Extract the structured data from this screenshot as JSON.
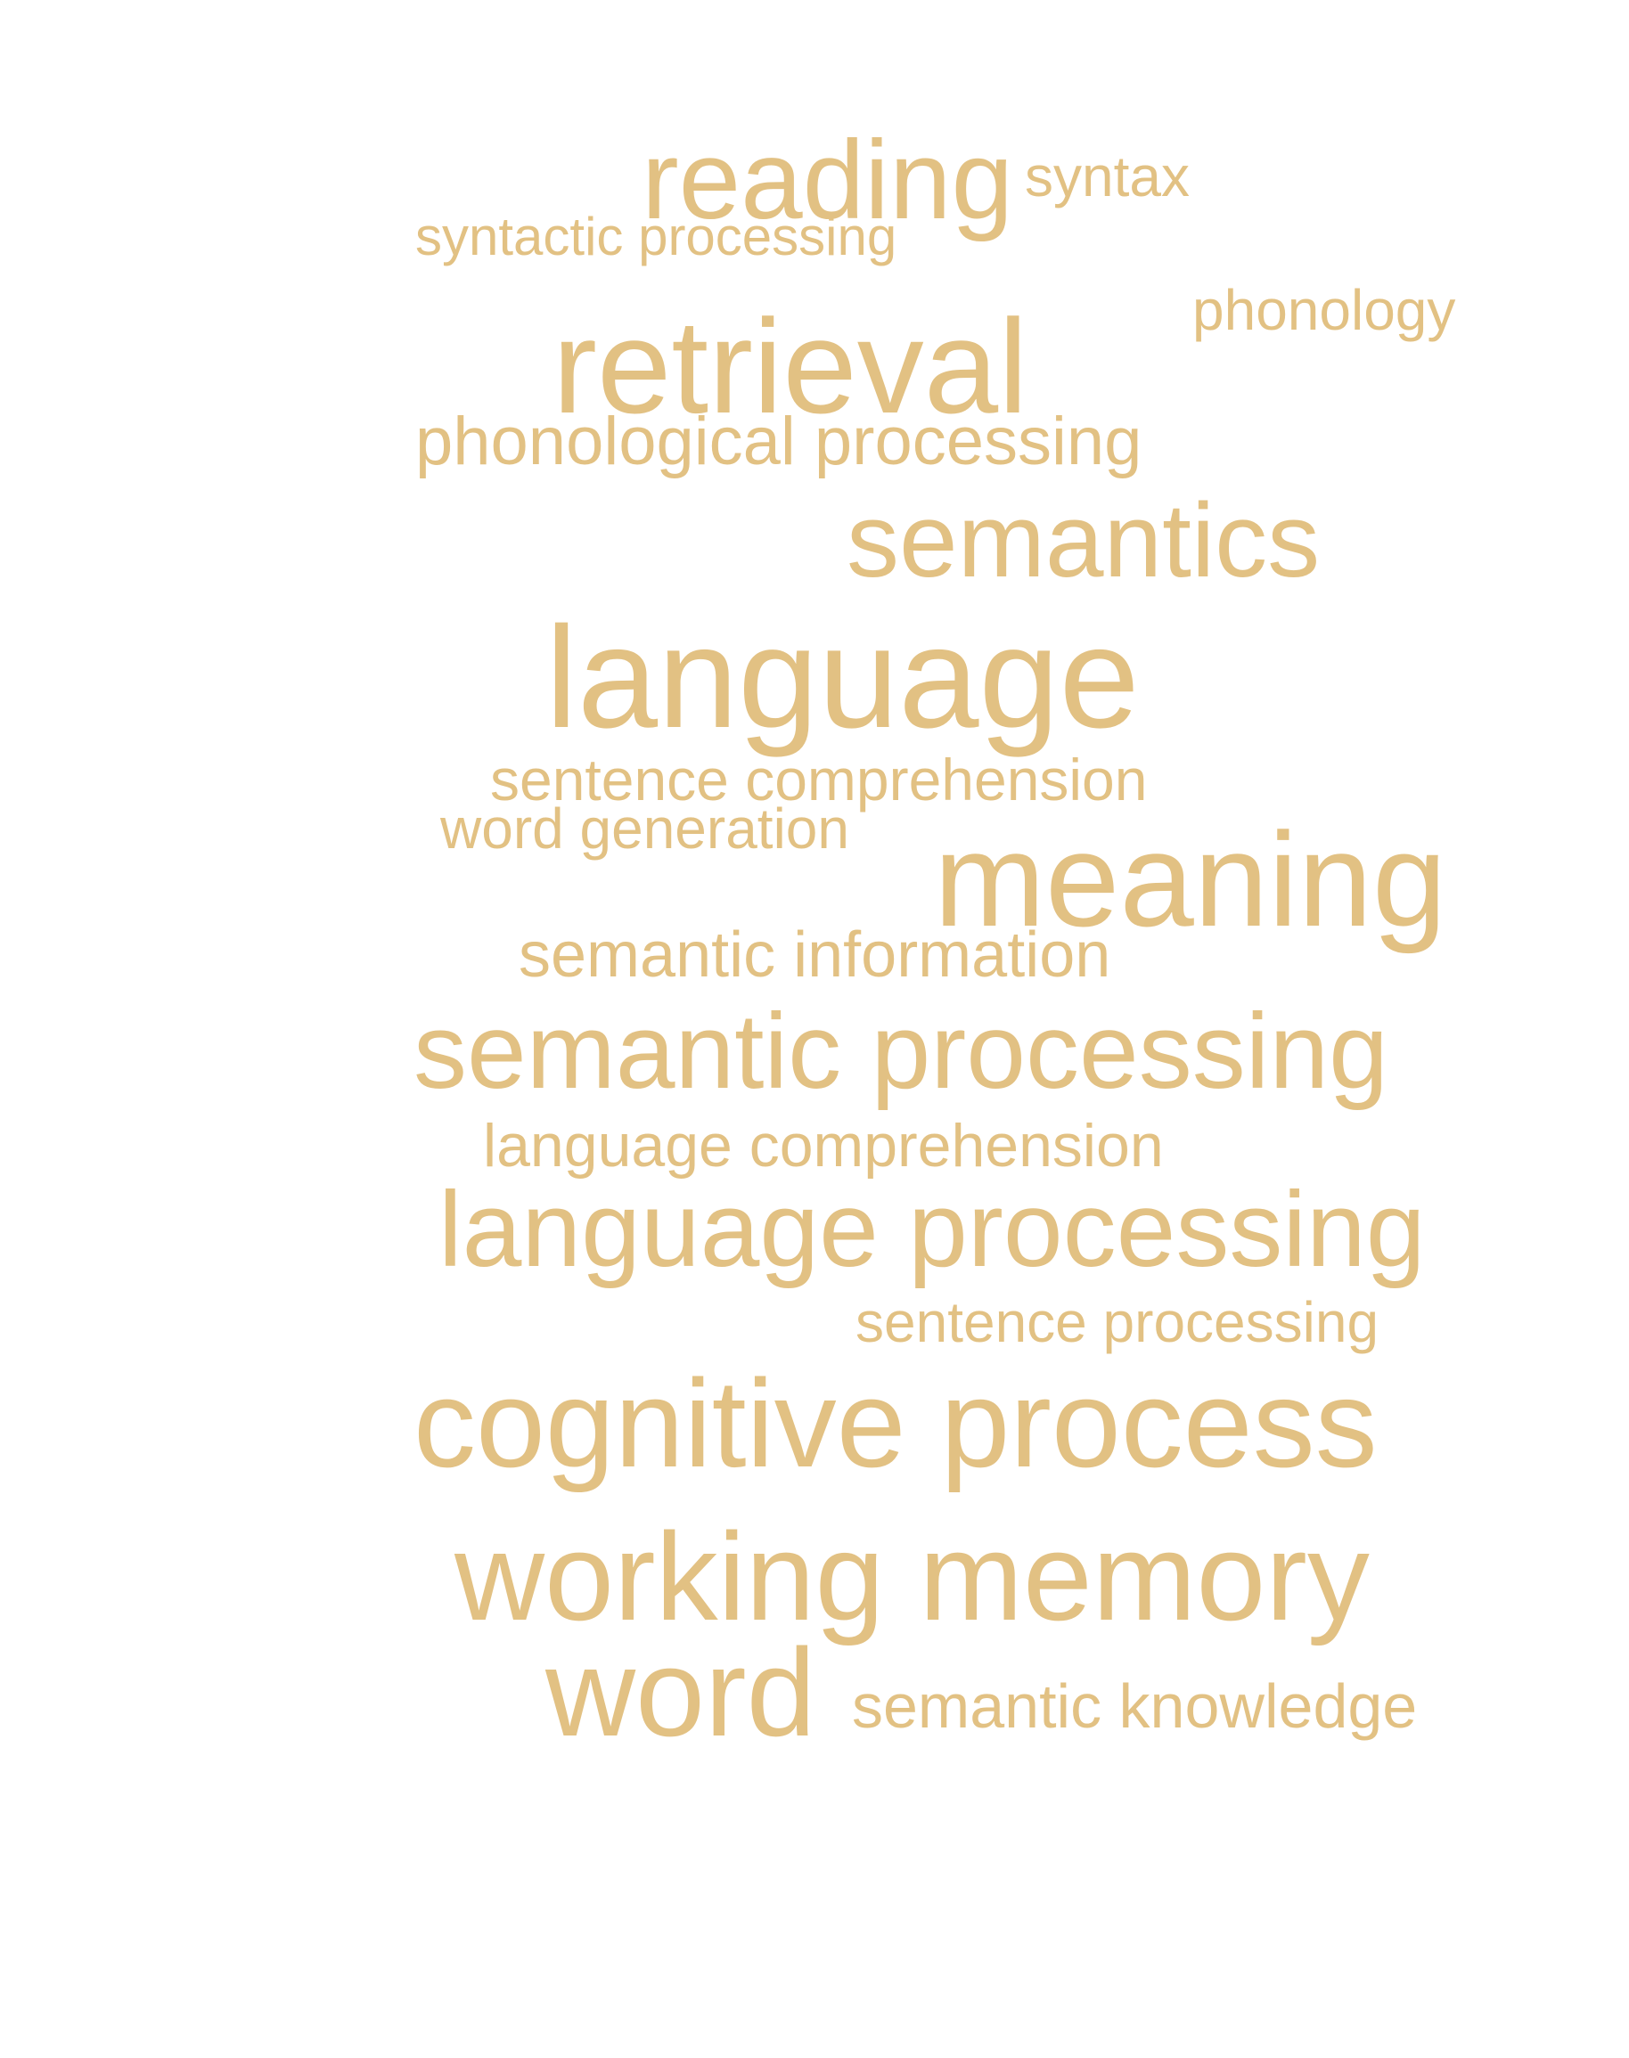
{
  "word_cloud": {
    "color": "#e2c183",
    "words": [
      "reading",
      "syntax",
      "syntactic processing",
      "phonology",
      "retrieval",
      "phonological processing",
      "semantics",
      "language",
      "sentence comprehension",
      "word generation",
      "meaning",
      "semantic information",
      "semantic processing",
      "language comprehension",
      "language processing",
      "sentence processing",
      "cognitive process",
      "working memory",
      "word",
      "semantic knowledge"
    ]
  }
}
